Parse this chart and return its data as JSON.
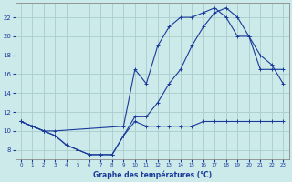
{
  "title": "Graphe des températures (°C)",
  "bg_color": "#cceaea",
  "grid_color": "#aacccc",
  "line_color": "#1a3a9a",
  "xlim": [
    -0.5,
    23.5
  ],
  "ylim": [
    7,
    23.5
  ],
  "xticks": [
    0,
    1,
    2,
    3,
    4,
    5,
    6,
    7,
    8,
    9,
    10,
    11,
    12,
    13,
    14,
    15,
    16,
    17,
    18,
    19,
    20,
    21,
    22,
    23
  ],
  "yticks": [
    8,
    10,
    12,
    14,
    16,
    18,
    20,
    22
  ],
  "line1_x": [
    0,
    1,
    2,
    3,
    4,
    5,
    6,
    7,
    8,
    9,
    10,
    11,
    12,
    13,
    14,
    15,
    16,
    17,
    18,
    19,
    20,
    21,
    22,
    23
  ],
  "line1_y": [
    11,
    10.5,
    10,
    9.5,
    8.5,
    8,
    7.5,
    7.5,
    7.5,
    9.5,
    11,
    10.5,
    10.5,
    10.5,
    10.5,
    10.5,
    11,
    11,
    11,
    11,
    11,
    11,
    11,
    11
  ],
  "line2_x": [
    0,
    1,
    2,
    3,
    9,
    10,
    11,
    12,
    13,
    14,
    15,
    16,
    17,
    18,
    19,
    20,
    21,
    22,
    23
  ],
  "line2_y": [
    11,
    10.5,
    10,
    10,
    10.5,
    16.5,
    15,
    19,
    21,
    22,
    22,
    22.5,
    23,
    22,
    20,
    20,
    18,
    17,
    15
  ],
  "line3_x": [
    0,
    2,
    3,
    4,
    5,
    6,
    7,
    8,
    9,
    10,
    11,
    12,
    13,
    14,
    15,
    16,
    17,
    18,
    19,
    20,
    21,
    22,
    23
  ],
  "line3_y": [
    11,
    10,
    9.5,
    8.5,
    8,
    7.5,
    7.5,
    7.5,
    9.5,
    11.5,
    11.5,
    13,
    15,
    16.5,
    19,
    21,
    22.5,
    23,
    22,
    20,
    16.5,
    16.5,
    16.5
  ]
}
